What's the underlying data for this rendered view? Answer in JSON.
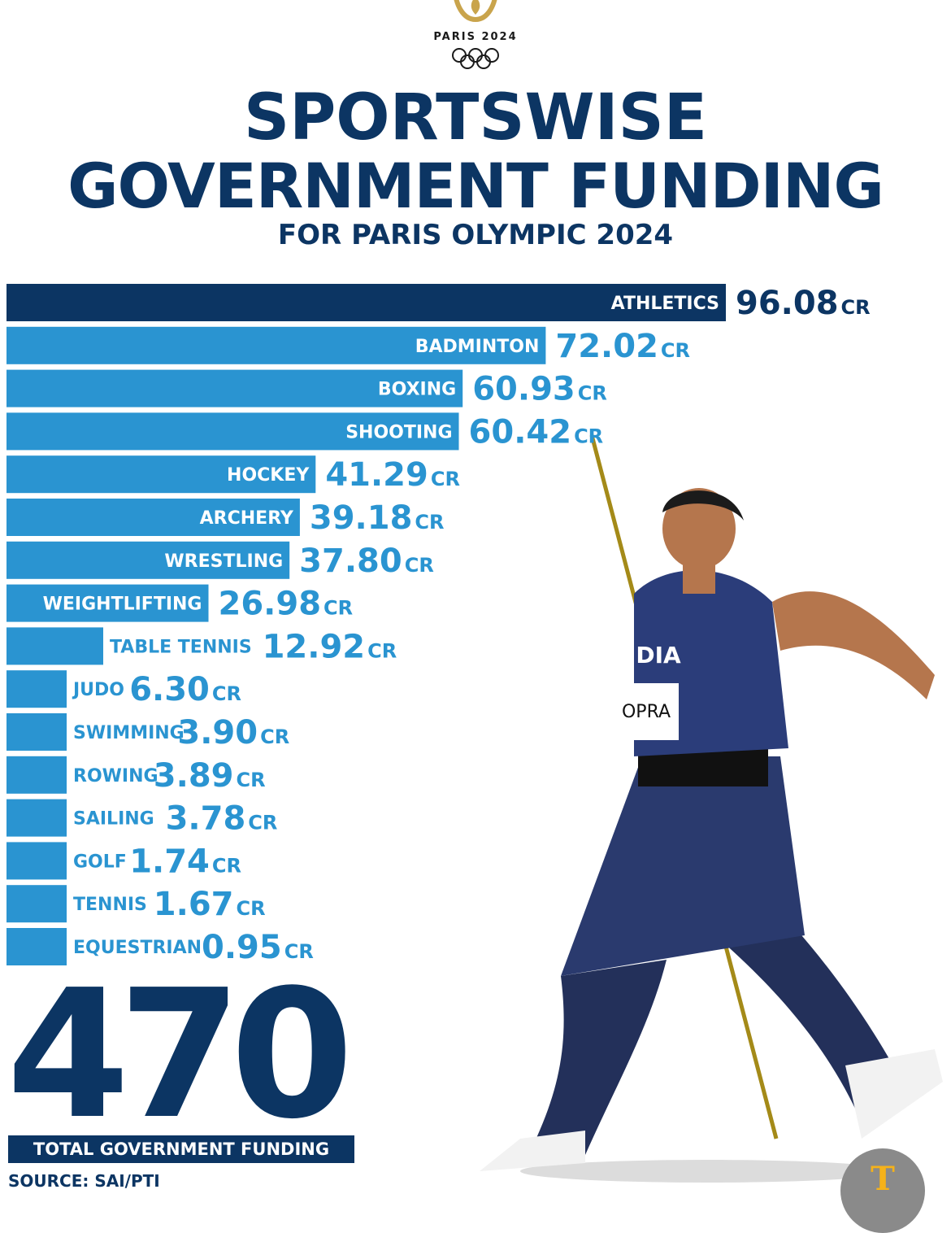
{
  "header": {
    "logo_text": "PARIS 2024",
    "title_line1": "SPORTSWISE",
    "title_line2": "GOVERNMENT FUNDING",
    "subtitle": "FOR PARIS OLYMPIC 2024"
  },
  "colors": {
    "highlight_bar": "#0c3563",
    "bar": "#2a94d1",
    "value_text": "#2a94d1",
    "title_text": "#0c3563"
  },
  "chart_data": {
    "type": "bar",
    "orientation": "horizontal",
    "unit_suffix": "CR",
    "categories": [
      "ATHLETICS",
      "BADMINTON",
      "BOXING",
      "SHOOTING",
      "HOCKEY",
      "ARCHERY",
      "WRESTLING",
      "WEIGHTLIFTING",
      "TABLE TENNIS",
      "JUDO",
      "SWIMMING",
      "ROWING",
      "SAILING",
      "GOLF",
      "TENNIS",
      "EQUESTRIAN"
    ],
    "values": [
      96.08,
      72.02,
      60.93,
      60.42,
      41.29,
      39.18,
      37.8,
      26.98,
      12.92,
      6.3,
      3.9,
      3.89,
      3.78,
      1.74,
      1.67,
      0.95
    ],
    "value_labels": [
      "96.08",
      "72.02",
      "60.93",
      "60.42",
      "41.29",
      "39.18",
      "37.80",
      "26.98",
      "12.92",
      "6.30",
      "3.90",
      "3.89",
      "3.78",
      "1.74",
      "1.67",
      "0.95"
    ],
    "highlight": "ATHLETICS"
  },
  "summary": {
    "total": "470",
    "total_label": "TOTAL GOVERNMENT FUNDING",
    "source": "SOURCE: SAI/PTI"
  },
  "athlete_bib": "OPRA",
  "jersey_text": "DIA",
  "watermark_letter": "T"
}
